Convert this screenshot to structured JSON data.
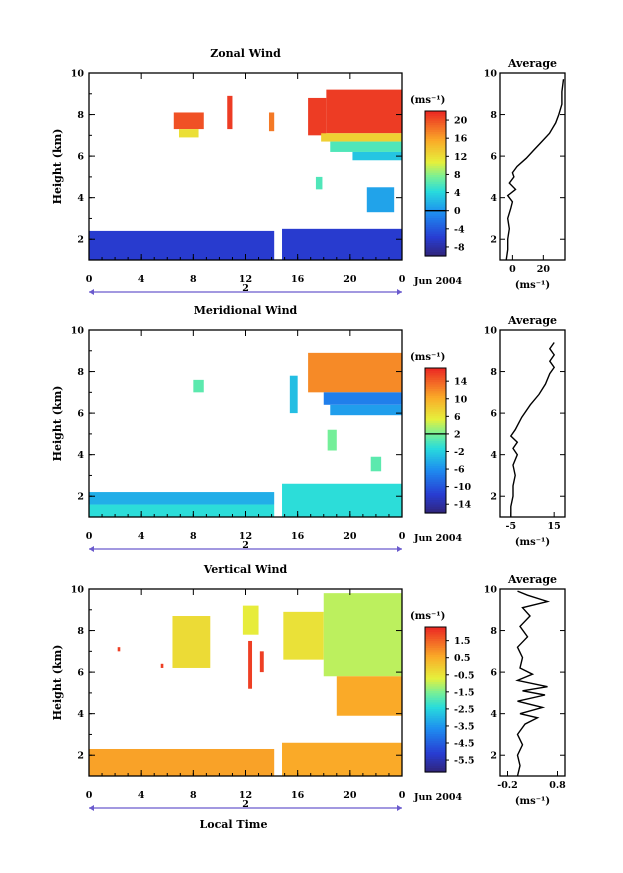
{
  "chart_data": [
    {
      "type": "heatmap",
      "title": "Zonal Wind",
      "xlabel": "",
      "ylabel": "Height (km)",
      "xticks": [
        "0",
        "4",
        "8",
        "12",
        "16",
        "20",
        "0"
      ],
      "day_labels": [
        "2"
      ],
      "date_label": "Jun 2004",
      "xlim": [
        0,
        24
      ],
      "ylim": [
        1,
        10
      ],
      "yticks": [
        "2",
        "4",
        "6",
        "8",
        "10"
      ],
      "colorbar": {
        "unit": "(ms⁻¹)",
        "ticks": [
          "20",
          "16",
          "12",
          "8",
          "4",
          "0",
          "-4",
          "-8"
        ],
        "range": [
          -10,
          22
        ],
        "zero_line": 0
      },
      "data_patches": [
        {
          "t": [
            0,
            14.2
          ],
          "h": [
            0.9,
            2.4
          ],
          "v": -6
        },
        {
          "t": [
            14.8,
            24
          ],
          "h": [
            0.9,
            2.5
          ],
          "v": -6
        },
        {
          "t": [
            6.5,
            8.8
          ],
          "h": [
            7.3,
            8.1
          ],
          "v": 20
        },
        {
          "t": [
            6.9,
            8.4
          ],
          "h": [
            6.9,
            7.3
          ],
          "v": 12
        },
        {
          "t": [
            10.6,
            11.0
          ],
          "h": [
            7.3,
            8.9
          ],
          "v": 21
        },
        {
          "t": [
            13.8,
            14.2
          ],
          "h": [
            7.2,
            8.1
          ],
          "v": 18
        },
        {
          "t": [
            16.8,
            18.2
          ],
          "h": [
            7.0,
            8.8
          ],
          "v": 21
        },
        {
          "t": [
            18.2,
            24
          ],
          "h": [
            7.1,
            9.2
          ],
          "v": 21
        },
        {
          "t": [
            17.8,
            24
          ],
          "h": [
            6.7,
            7.1
          ],
          "v": 13
        },
        {
          "t": [
            18.5,
            24
          ],
          "h": [
            6.2,
            6.7
          ],
          "v": 6
        },
        {
          "t": [
            20.2,
            24
          ],
          "h": [
            5.8,
            6.2
          ],
          "v": 3
        },
        {
          "t": [
            21.3,
            23.4
          ],
          "h": [
            3.3,
            4.5
          ],
          "v": 1
        },
        {
          "t": [
            17.4,
            17.9
          ],
          "h": [
            4.4,
            5.0
          ],
          "v": 6
        }
      ],
      "average_profile": {
        "title": "Average",
        "xticks": [
          "0",
          "20"
        ],
        "xlim": [
          -8,
          34
        ],
        "unit": "(ms⁻¹)",
        "yticks": [
          "2",
          "4",
          "6",
          "8",
          "10"
        ],
        "ylim": [
          1,
          10
        ],
        "points": [
          [
            -4,
            1.0
          ],
          [
            -3,
            1.5
          ],
          [
            -3,
            2.0
          ],
          [
            -2,
            2.5
          ],
          [
            -3,
            3.0
          ],
          [
            -1,
            3.5
          ],
          [
            0,
            3.8
          ],
          [
            -3,
            4.1
          ],
          [
            2,
            4.4
          ],
          [
            -2,
            4.7
          ],
          [
            1,
            5.0
          ],
          [
            0,
            5.2
          ],
          [
            3,
            5.5
          ],
          [
            9,
            5.9
          ],
          [
            14,
            6.3
          ],
          [
            19,
            6.7
          ],
          [
            24,
            7.1
          ],
          [
            28,
            7.6
          ],
          [
            30,
            8.0
          ],
          [
            32,
            8.5
          ],
          [
            32,
            9.1
          ],
          [
            33,
            9.7
          ]
        ]
      }
    },
    {
      "type": "heatmap",
      "title": "Meridional Wind",
      "xlabel": "",
      "ylabel": "Height (km)",
      "xticks": [
        "0",
        "4",
        "8",
        "12",
        "16",
        "20",
        "0"
      ],
      "day_labels": [
        "2"
      ],
      "date_label": "Jun 2004",
      "xlim": [
        0,
        24
      ],
      "ylim": [
        1,
        10
      ],
      "yticks": [
        "2",
        "4",
        "6",
        "8",
        "10"
      ],
      "colorbar": {
        "unit": "(ms⁻¹)",
        "ticks": [
          "14",
          "10",
          "6",
          "2",
          "-2",
          "-6",
          "-10",
          "-14"
        ],
        "range": [
          -16,
          17
        ],
        "zero_line": 2
      },
      "data_patches": [
        {
          "t": [
            0,
            14.2
          ],
          "h": [
            0.9,
            1.6
          ],
          "v": -1
        },
        {
          "t": [
            0,
            14.2
          ],
          "h": [
            1.6,
            2.2
          ],
          "v": -4
        },
        {
          "t": [
            14.8,
            24
          ],
          "h": [
            0.9,
            2.6
          ],
          "v": -1
        },
        {
          "t": [
            8.0,
            8.8
          ],
          "h": [
            7.0,
            7.6
          ],
          "v": 1
        },
        {
          "t": [
            15.4,
            16.0
          ],
          "h": [
            6.0,
            7.8
          ],
          "v": -3
        },
        {
          "t": [
            16.8,
            24
          ],
          "h": [
            7.0,
            8.9
          ],
          "v": 12
        },
        {
          "t": [
            18.0,
            24
          ],
          "h": [
            6.4,
            7.0
          ],
          "v": -7
        },
        {
          "t": [
            18.5,
            24
          ],
          "h": [
            5.9,
            6.4
          ],
          "v": -5
        },
        {
          "t": [
            18.3,
            19.0
          ],
          "h": [
            4.2,
            5.2
          ],
          "v": 2
        },
        {
          "t": [
            21.6,
            22.4
          ],
          "h": [
            3.2,
            3.9
          ],
          "v": 1
        }
      ],
      "average_profile": {
        "title": "Average",
        "xticks": [
          "-5",
          "15"
        ],
        "xlim": [
          -10,
          20
        ],
        "unit": "(ms⁻¹)",
        "yticks": [
          "2",
          "4",
          "6",
          "8",
          "10"
        ],
        "ylim": [
          1,
          10
        ],
        "points": [
          [
            -5,
            1.0
          ],
          [
            -5,
            1.5
          ],
          [
            -4,
            2.0
          ],
          [
            -4,
            2.5
          ],
          [
            -3,
            3.0
          ],
          [
            -4,
            3.5
          ],
          [
            -2,
            4.0
          ],
          [
            -4,
            4.3
          ],
          [
            -2,
            4.6
          ],
          [
            -5,
            4.9
          ],
          [
            -3,
            5.2
          ],
          [
            0,
            5.8
          ],
          [
            4,
            6.4
          ],
          [
            8,
            6.9
          ],
          [
            11,
            7.4
          ],
          [
            13,
            7.9
          ],
          [
            15,
            8.2
          ],
          [
            13,
            8.5
          ],
          [
            15,
            8.8
          ],
          [
            13,
            9.1
          ],
          [
            15,
            9.4
          ]
        ]
      }
    },
    {
      "type": "heatmap",
      "title": "Vertical Wind",
      "xlabel": "Local Time",
      "ylabel": "Height (km)",
      "xticks": [
        "0",
        "4",
        "8",
        "12",
        "16",
        "20",
        "0"
      ],
      "day_labels": [
        "2"
      ],
      "date_label": "Jun 2004",
      "xlim": [
        0,
        24
      ],
      "ylim": [
        1,
        10
      ],
      "yticks": [
        "2",
        "4",
        "6",
        "8",
        "10"
      ],
      "colorbar": {
        "unit": "(ms⁻¹)",
        "ticks": [
          "1.5",
          "0.5",
          "-0.5",
          "-1.5",
          "-2.5",
          "-3.5",
          "-4.5",
          "-5.5"
        ],
        "range": [
          -6.2,
          2.3
        ],
        "zero_line": null
      },
      "data_patches": [
        {
          "t": [
            0,
            14.2
          ],
          "h": [
            0.9,
            2.3
          ],
          "v": 0.7
        },
        {
          "t": [
            14.8,
            24
          ],
          "h": [
            0.9,
            2.6
          ],
          "v": 0.6
        },
        {
          "t": [
            6.4,
            9.3
          ],
          "h": [
            6.2,
            8.7
          ],
          "v": -0.3
        },
        {
          "t": [
            11.8,
            13.0
          ],
          "h": [
            7.8,
            9.2
          ],
          "v": -0.6
        },
        {
          "t": [
            14.9,
            18.0
          ],
          "h": [
            6.6,
            8.9
          ],
          "v": -0.4
        },
        {
          "t": [
            18.0,
            24
          ],
          "h": [
            5.8,
            9.8
          ],
          "v": -1.0
        },
        {
          "t": [
            19.0,
            24
          ],
          "h": [
            3.9,
            5.8
          ],
          "v": 0.6
        },
        {
          "t": [
            12.2,
            12.5
          ],
          "h": [
            5.2,
            7.5
          ],
          "v": 2.0
        },
        {
          "t": [
            13.1,
            13.4
          ],
          "h": [
            6.0,
            7.0
          ],
          "v": 2.0
        },
        {
          "t": [
            2.2,
            2.4
          ],
          "h": [
            7.0,
            7.2
          ],
          "v": 2.0
        },
        {
          "t": [
            5.5,
            5.7
          ],
          "h": [
            6.2,
            6.4
          ],
          "v": 2.0
        }
      ],
      "average_profile": {
        "title": "Average",
        "xticks": [
          "-0.2",
          "0.8"
        ],
        "xlim": [
          -0.35,
          0.95
        ],
        "unit": "(ms⁻¹)",
        "yticks": [
          "2",
          "4",
          "6",
          "8",
          "10"
        ],
        "ylim": [
          1,
          10
        ],
        "points": [
          [
            0.0,
            1.0
          ],
          [
            0.05,
            1.5
          ],
          [
            0.0,
            2.0
          ],
          [
            0.1,
            2.5
          ],
          [
            0.0,
            3.0
          ],
          [
            0.15,
            3.5
          ],
          [
            0.4,
            3.8
          ],
          [
            0.05,
            4.0
          ],
          [
            0.5,
            4.3
          ],
          [
            0.0,
            4.6
          ],
          [
            0.55,
            4.9
          ],
          [
            0.1,
            5.1
          ],
          [
            0.6,
            5.3
          ],
          [
            0.0,
            5.6
          ],
          [
            0.3,
            5.9
          ],
          [
            0.05,
            6.2
          ],
          [
            0.1,
            6.7
          ],
          [
            0.0,
            7.2
          ],
          [
            0.2,
            7.7
          ],
          [
            0.05,
            8.2
          ],
          [
            0.25,
            8.7
          ],
          [
            0.1,
            9.1
          ],
          [
            0.6,
            9.4
          ],
          [
            0.2,
            9.7
          ],
          [
            0.0,
            9.9
          ]
        ]
      }
    }
  ]
}
